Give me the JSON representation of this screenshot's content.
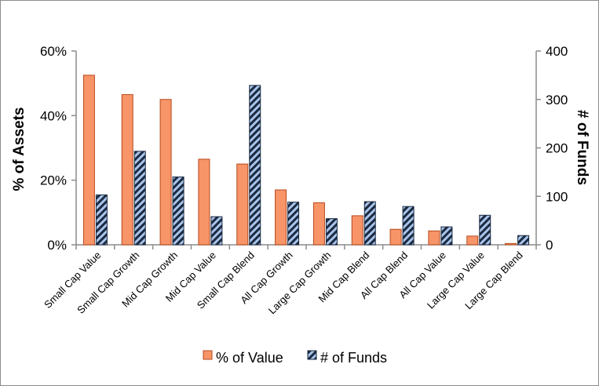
{
  "chart_data": {
    "type": "bar",
    "categories": [
      "Small Cap Value",
      "Small Cap Growth",
      "Mid Cap Growth",
      "Mid Cap Value",
      "Small Cap Blend",
      "All Cap Growth",
      "Large Cap Growth",
      "Mid Cap Blend",
      "All Cap Blend",
      "All Cap Value",
      "Large Cap Value",
      "Large Cap Blend"
    ],
    "series": [
      {
        "name": "% of Value",
        "axis": "left",
        "values": [
          52.5,
          46.5,
          45,
          26.5,
          25,
          17,
          13,
          9,
          4.8,
          4.3,
          2.7,
          0.4
        ]
      },
      {
        "name": "# of Funds",
        "axis": "right",
        "values": [
          103,
          193,
          140,
          58,
          329,
          88,
          54,
          89,
          79,
          37,
          61,
          19
        ]
      }
    ],
    "ylabel": "% of Assets",
    "y2label": "# of Funds",
    "ylim": [
      0,
      60
    ],
    "y2lim": [
      0,
      400
    ],
    "yticks": [
      "0%",
      "20%",
      "40%",
      "60%"
    ],
    "y2ticks": [
      "0",
      "100",
      "200",
      "300",
      "400"
    ],
    "grid": false,
    "legend_position": "bottom",
    "colors": {
      "value_fill": "#F79468",
      "value_stroke": "#B64A1E",
      "funds_fill": "#A9C4EB",
      "funds_stripe": "#1B2A40"
    }
  }
}
